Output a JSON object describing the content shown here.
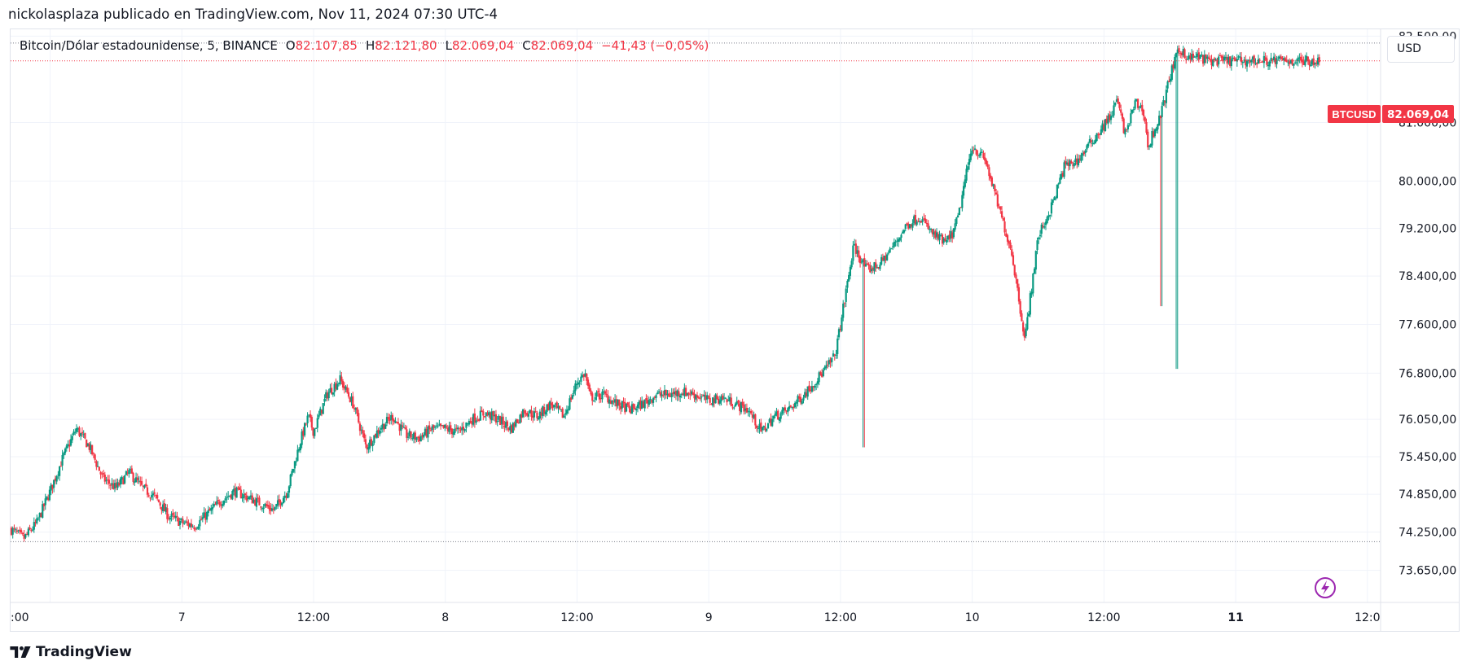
{
  "header": {
    "published_by": "nickolasplaza publicado en TradingView.com, Nov 11, 2024 07:30 UTC-4"
  },
  "legend": {
    "symbol": "Bitcoin/Dólar estadounidense, 5, BINANCE",
    "open_label": "O",
    "open": "82.107,85",
    "high_label": "H",
    "high": "82.121,80",
    "low_label": "L",
    "low": "82.069,04",
    "close_label": "C",
    "close": "82.069,04",
    "change": "−41,43 (−0,05%)"
  },
  "currency_button": {
    "label": "USD"
  },
  "price_badge": {
    "ticker": "BTCUSD",
    "price": "82.069,04",
    "color": "#f23645"
  },
  "footer": {
    "brand": "TradingView"
  },
  "colors": {
    "up": "#089981",
    "down": "#f23645",
    "grid": "#f0f3fa",
    "axis_text": "#131722"
  },
  "chart_data": {
    "type": "line",
    "title": "Bitcoin/Dólar estadounidense, 5, BINANCE",
    "y_scale": "log",
    "ylim": [
      73150,
      82620
    ],
    "y_ticks": [
      {
        "value": 82500,
        "label": "82.500,00"
      },
      {
        "value": 81000,
        "label": "81.000,00"
      },
      {
        "value": 80000,
        "label": "80.000,00"
      },
      {
        "value": 79200,
        "label": "79.200,00"
      },
      {
        "value": 78400,
        "label": "78.400,00"
      },
      {
        "value": 77600,
        "label": "77.600,00"
      },
      {
        "value": 76800,
        "label": "76.800,00"
      },
      {
        "value": 76050,
        "label": "76.050,00"
      },
      {
        "value": 75450,
        "label": "75.450,00"
      },
      {
        "value": 74850,
        "label": "74.850,00"
      },
      {
        "value": 74250,
        "label": "74.250,00"
      },
      {
        "value": 73650,
        "label": "73.650,00"
      }
    ],
    "xlim": [
      -0.15,
      5.05
    ],
    "x_ticks": [
      {
        "value": 0,
        "label": ":00",
        "bold": false
      },
      {
        "value": 0.5,
        "label": "7",
        "bold": false
      },
      {
        "value": 1,
        "label": "12:00",
        "bold": false
      },
      {
        "value": 1.5,
        "label": "8",
        "bold": false
      },
      {
        "value": 2,
        "label": "12:00",
        "bold": false
      },
      {
        "value": 2.5,
        "label": "9",
        "bold": false
      },
      {
        "value": 3,
        "label": "12:00",
        "bold": false
      },
      {
        "value": 3.5,
        "label": "10",
        "bold": false
      },
      {
        "value": 4,
        "label": "12:00",
        "bold": false
      },
      {
        "value": 4.5,
        "label": "11",
        "bold": true
      },
      {
        "value": 5,
        "label": "12:0",
        "bold": false
      }
    ],
    "hlines": [
      {
        "value": 82380,
        "style": "dotted",
        "color": "#787b86"
      },
      {
        "value": 82069.04,
        "style": "dotted",
        "color": "#f23645"
      },
      {
        "value": 74100,
        "style": "dotted",
        "color": "#787b86"
      }
    ],
    "series": [
      {
        "x": [
          -0.15,
          -0.1,
          -0.05,
          0.0,
          0.05,
          0.1,
          0.15,
          0.2,
          0.25,
          0.3,
          0.35,
          0.4,
          0.45,
          0.5,
          0.55,
          0.6,
          0.65,
          0.7,
          0.75,
          0.8,
          0.85,
          0.9,
          0.95,
          0.98,
          1.0,
          1.05,
          1.1,
          1.15,
          1.2,
          1.25,
          1.3,
          1.35,
          1.4,
          1.45,
          1.5,
          1.55,
          1.6,
          1.65,
          1.7,
          1.75,
          1.8,
          1.85,
          1.9,
          1.95,
          2.0,
          2.03,
          2.05,
          2.1,
          2.15,
          2.18,
          2.2,
          2.25,
          2.3,
          2.35,
          2.4,
          2.45,
          2.5,
          2.55,
          2.6,
          2.65,
          2.7,
          2.75,
          2.8,
          2.85,
          2.9,
          2.95,
          2.98,
          3.0,
          3.05,
          3.1,
          3.15,
          3.2,
          3.25,
          3.3,
          3.35,
          3.4,
          3.43,
          3.45,
          3.47,
          3.5,
          3.55,
          3.6,
          3.65,
          3.7,
          3.75,
          3.8,
          3.85,
          3.9,
          3.95,
          4.0,
          4.03,
          4.05,
          4.08,
          4.12,
          4.15,
          4.17,
          4.18,
          4.2,
          4.22,
          4.25,
          4.28,
          4.3,
          4.32,
          4.35,
          4.4,
          4.45,
          4.5,
          4.55,
          4.6,
          4.65,
          4.7,
          4.75,
          4.78,
          4.8,
          4.82
        ],
        "y": [
          74300,
          74150,
          74400,
          74900,
          75450,
          75900,
          75600,
          75100,
          74950,
          75200,
          74950,
          74800,
          74500,
          74400,
          74350,
          74550,
          74750,
          74900,
          74800,
          74700,
          74600,
          74900,
          75700,
          76100,
          75850,
          76450,
          76700,
          76300,
          75600,
          75900,
          76100,
          75800,
          75750,
          75900,
          75900,
          75850,
          76050,
          76150,
          76050,
          75900,
          76200,
          76100,
          76300,
          76100,
          76650,
          76800,
          76400,
          76450,
          76300,
          76250,
          76200,
          76300,
          76450,
          76450,
          76500,
          76450,
          76350,
          76400,
          76300,
          76200,
          75850,
          76100,
          76200,
          76400,
          76650,
          76900,
          77100,
          77600,
          78900,
          78500,
          78600,
          78900,
          79250,
          79400,
          79100,
          78950,
          79150,
          79450,
          79950,
          80600,
          80350,
          79550,
          78800,
          77350,
          79050,
          79550,
          80250,
          80350,
          80650,
          80950,
          81150,
          81400,
          80800,
          81350,
          81200,
          80500,
          80750,
          80950,
          81200,
          81800,
          82200,
          82250,
          82100,
          82150,
          82069,
          82069,
          82069,
          82069,
          82069,
          82069,
          82069,
          82069,
          82069,
          82069,
          82069
        ]
      }
    ]
  }
}
